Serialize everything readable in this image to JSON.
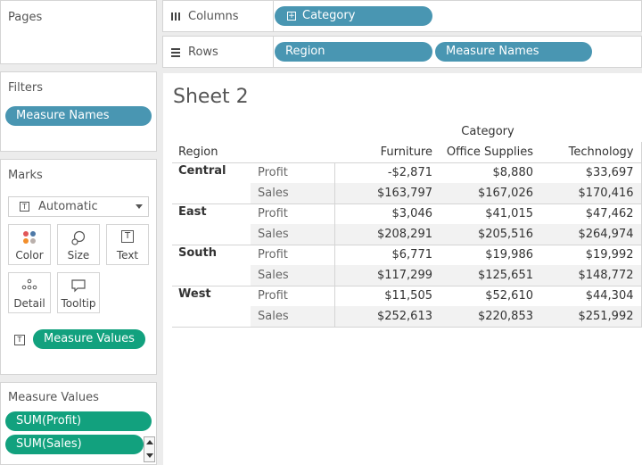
{
  "pages": {
    "title": "Pages"
  },
  "filters": {
    "title": "Filters",
    "pill": "Measure Names"
  },
  "marks": {
    "title": "Marks",
    "type_value": "Automatic",
    "buttons": [
      "Color",
      "Size",
      "Text",
      "Detail",
      "Tooltip"
    ],
    "text_pill": "Measure Values"
  },
  "measure_values": {
    "title": "Measure Values",
    "items": [
      "SUM(Profit)",
      "SUM(Sales)"
    ]
  },
  "columns": {
    "label": "Columns",
    "pills": [
      "Category"
    ]
  },
  "rows": {
    "label": "Rows",
    "pills": [
      "Region",
      "Measure Names"
    ]
  },
  "sheet": {
    "title": "Sheet 2",
    "column_header": "Category",
    "row_header": "Region",
    "categories": [
      "Furniture",
      "Office Supplies",
      "Technology"
    ],
    "regions": [
      {
        "name": "Central",
        "rows": [
          {
            "measure": "Profit",
            "values": [
              "-$2,871",
              "$8,880",
              "$33,697"
            ]
          },
          {
            "measure": "Sales",
            "values": [
              "$163,797",
              "$167,026",
              "$170,416"
            ]
          }
        ]
      },
      {
        "name": "East",
        "rows": [
          {
            "measure": "Profit",
            "values": [
              "$3,046",
              "$41,015",
              "$47,462"
            ]
          },
          {
            "measure": "Sales",
            "values": [
              "$208,291",
              "$205,516",
              "$264,974"
            ]
          }
        ]
      },
      {
        "name": "South",
        "rows": [
          {
            "measure": "Profit",
            "values": [
              "$6,771",
              "$19,986",
              "$19,992"
            ]
          },
          {
            "measure": "Sales",
            "values": [
              "$117,299",
              "$125,651",
              "$148,772"
            ]
          }
        ]
      },
      {
        "name": "West",
        "rows": [
          {
            "measure": "Profit",
            "values": [
              "$11,505",
              "$52,610",
              "$44,304"
            ]
          },
          {
            "measure": "Sales",
            "values": [
              "$252,613",
              "$220,853",
              "$251,992"
            ]
          }
        ]
      }
    ]
  },
  "colors": {
    "dimension_pill": "#4996b2",
    "measure_pill": "#12a17e"
  }
}
